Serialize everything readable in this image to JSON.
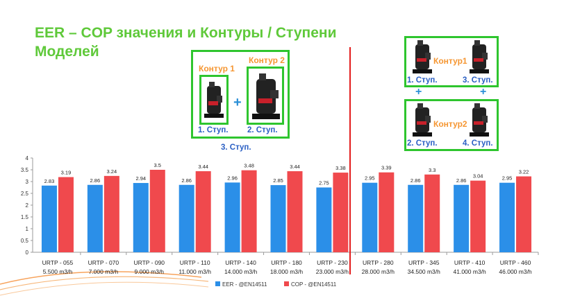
{
  "title": "EER – COP значения и Контуры / Ступени Моделей",
  "diagram_left": {
    "contour1": "Контур 1",
    "contour2": "Контур 2",
    "plus": "+",
    "step1": "1.  Ступ.",
    "step2": "2.  Ступ.",
    "step3": "3.  Ступ."
  },
  "diagram_right": {
    "contour1": "Контур1",
    "contour2": "Контур2",
    "plus": "+",
    "step1": "1.  Ступ.",
    "step2": "2.  Ступ.",
    "step3": "3.  Ступ.",
    "step4": "4.  Ступ."
  },
  "colors": {
    "eer": "#2b8fe8",
    "cop": "#f0494d",
    "title": "#5fc93a",
    "box": "#2ec52e",
    "divider": "#e31b1b"
  },
  "chart_data": {
    "type": "bar",
    "categories": [
      [
        "URTP - 055",
        "5.500 m3/h"
      ],
      [
        "URTP - 070",
        "7.000 m3/h"
      ],
      [
        "URTP - 090",
        "9.000 m3/h"
      ],
      [
        "URTP - 110",
        "11.000 m3/h"
      ],
      [
        "URTP - 140",
        "14.000 m3/h"
      ],
      [
        "URTP - 180",
        "18.000 m3/h"
      ],
      [
        "URTP - 230",
        "23.000 m3/h"
      ],
      [
        "URTP - 280",
        "28.000 m3/h"
      ],
      [
        "URTP - 345",
        "34.500 m3/h"
      ],
      [
        "URTP - 410",
        "41.000 m3/h"
      ],
      [
        "URTP - 460",
        "46.000 m3/h"
      ]
    ],
    "series": [
      {
        "name": "EER - @EN14511",
        "values": [
          2.83,
          2.86,
          2.94,
          2.86,
          2.96,
          2.85,
          2.75,
          2.95,
          2.86,
          2.86,
          2.95
        ]
      },
      {
        "name": "COP - @EN14511",
        "values": [
          3.19,
          3.24,
          3.5,
          3.44,
          3.48,
          3.44,
          3.38,
          3.39,
          3.3,
          3.04,
          3.22
        ]
      }
    ],
    "yticks": [
      "0",
      "0.5",
      "1",
      "1.5",
      "2",
      "2.5",
      "3",
      "3.5",
      "4"
    ],
    "ylim": [
      0,
      4
    ],
    "legend": "bottom",
    "grid": false
  }
}
